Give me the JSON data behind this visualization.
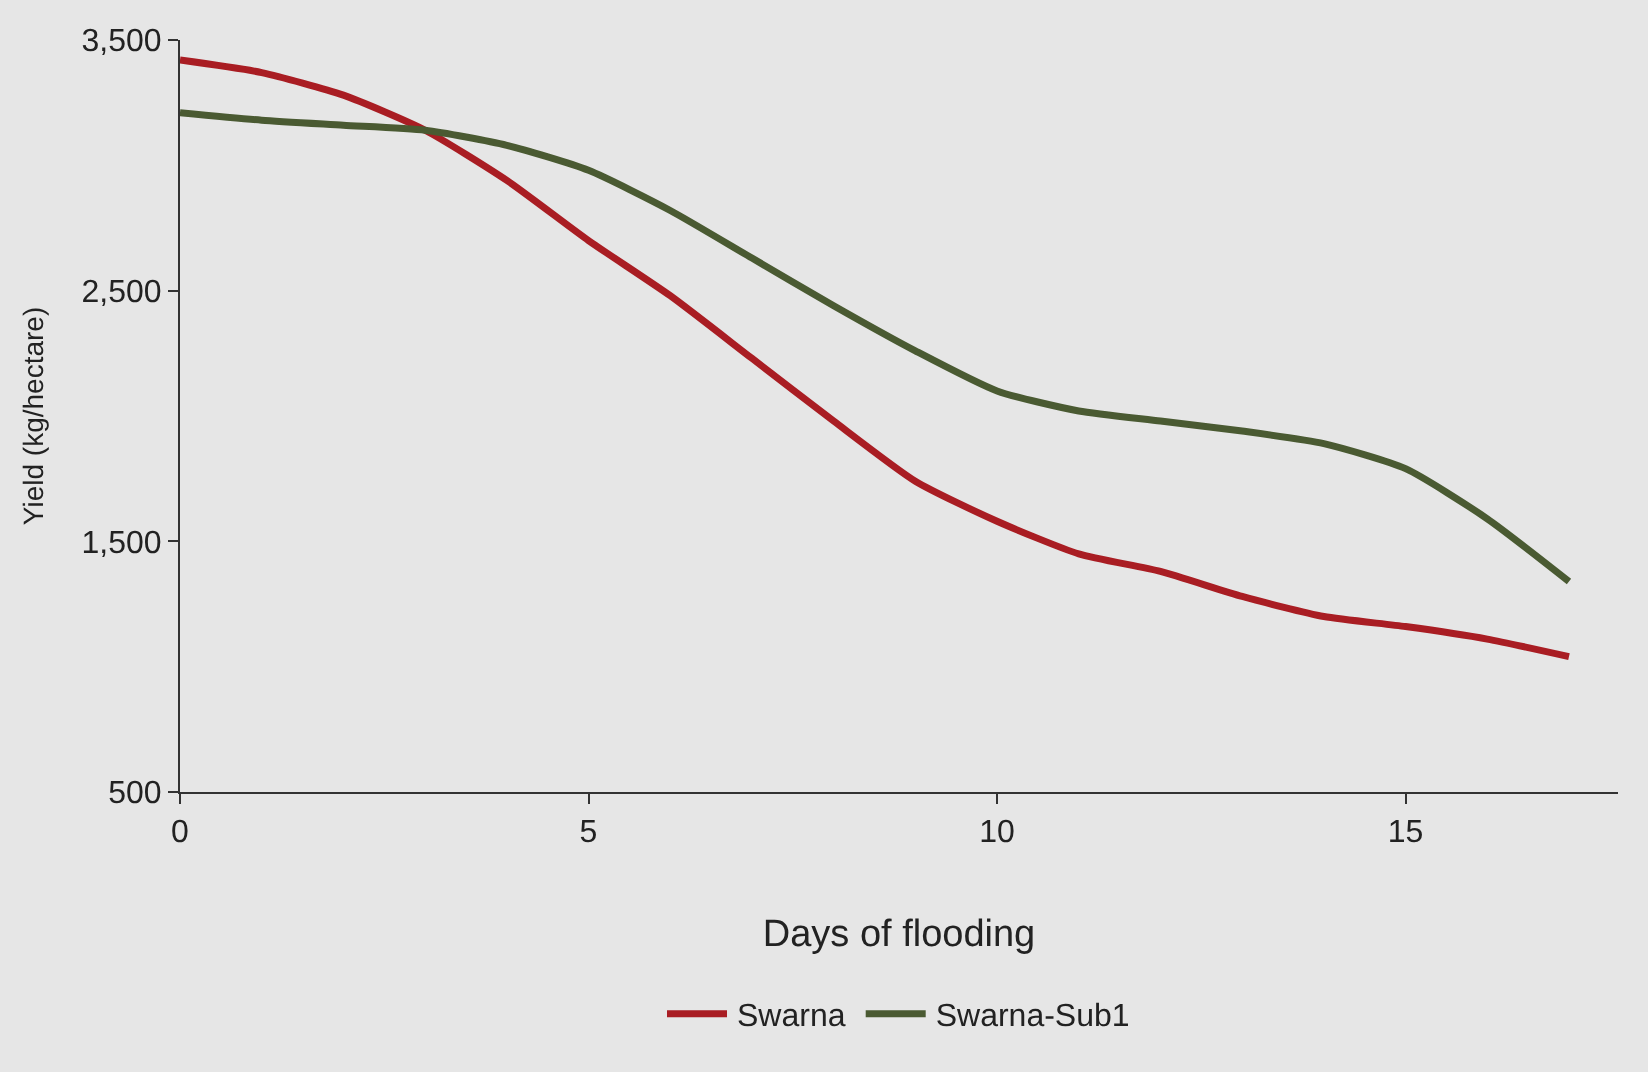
{
  "chart_data": {
    "type": "line",
    "xlabel": "Days of flooding",
    "ylabel": "Yield (kg/hectare)",
    "x": [
      0,
      1,
      2,
      3,
      4,
      5,
      6,
      7,
      8,
      9,
      10,
      11,
      12,
      13,
      14,
      15,
      16,
      17
    ],
    "series": [
      {
        "name": "Swarna",
        "color": "#a91d23",
        "values": [
          3420,
          3370,
          3280,
          3140,
          2940,
          2700,
          2480,
          2230,
          1980,
          1740,
          1580,
          1450,
          1380,
          1280,
          1200,
          1160,
          1110,
          1040
        ]
      },
      {
        "name": "Swarna-Sub1",
        "color": "#4a5a32",
        "values": [
          3210,
          3180,
          3160,
          3140,
          3080,
          2980,
          2820,
          2630,
          2440,
          2260,
          2100,
          2020,
          1980,
          1940,
          1890,
          1790,
          1590,
          1340
        ]
      }
    ],
    "xlim": [
      0,
      17.6
    ],
    "xticks": [
      0,
      5,
      10,
      15
    ],
    "ylim": [
      500,
      3500
    ],
    "yticks": [
      {
        "value": 500,
        "label": "500"
      },
      {
        "value": 1500,
        "label": "1,500"
      },
      {
        "value": 2500,
        "label": "2,500"
      },
      {
        "value": 3500,
        "label": "3,500"
      }
    ],
    "grid": false,
    "legend": "bottom",
    "marker": "none",
    "line_style": "solid"
  }
}
